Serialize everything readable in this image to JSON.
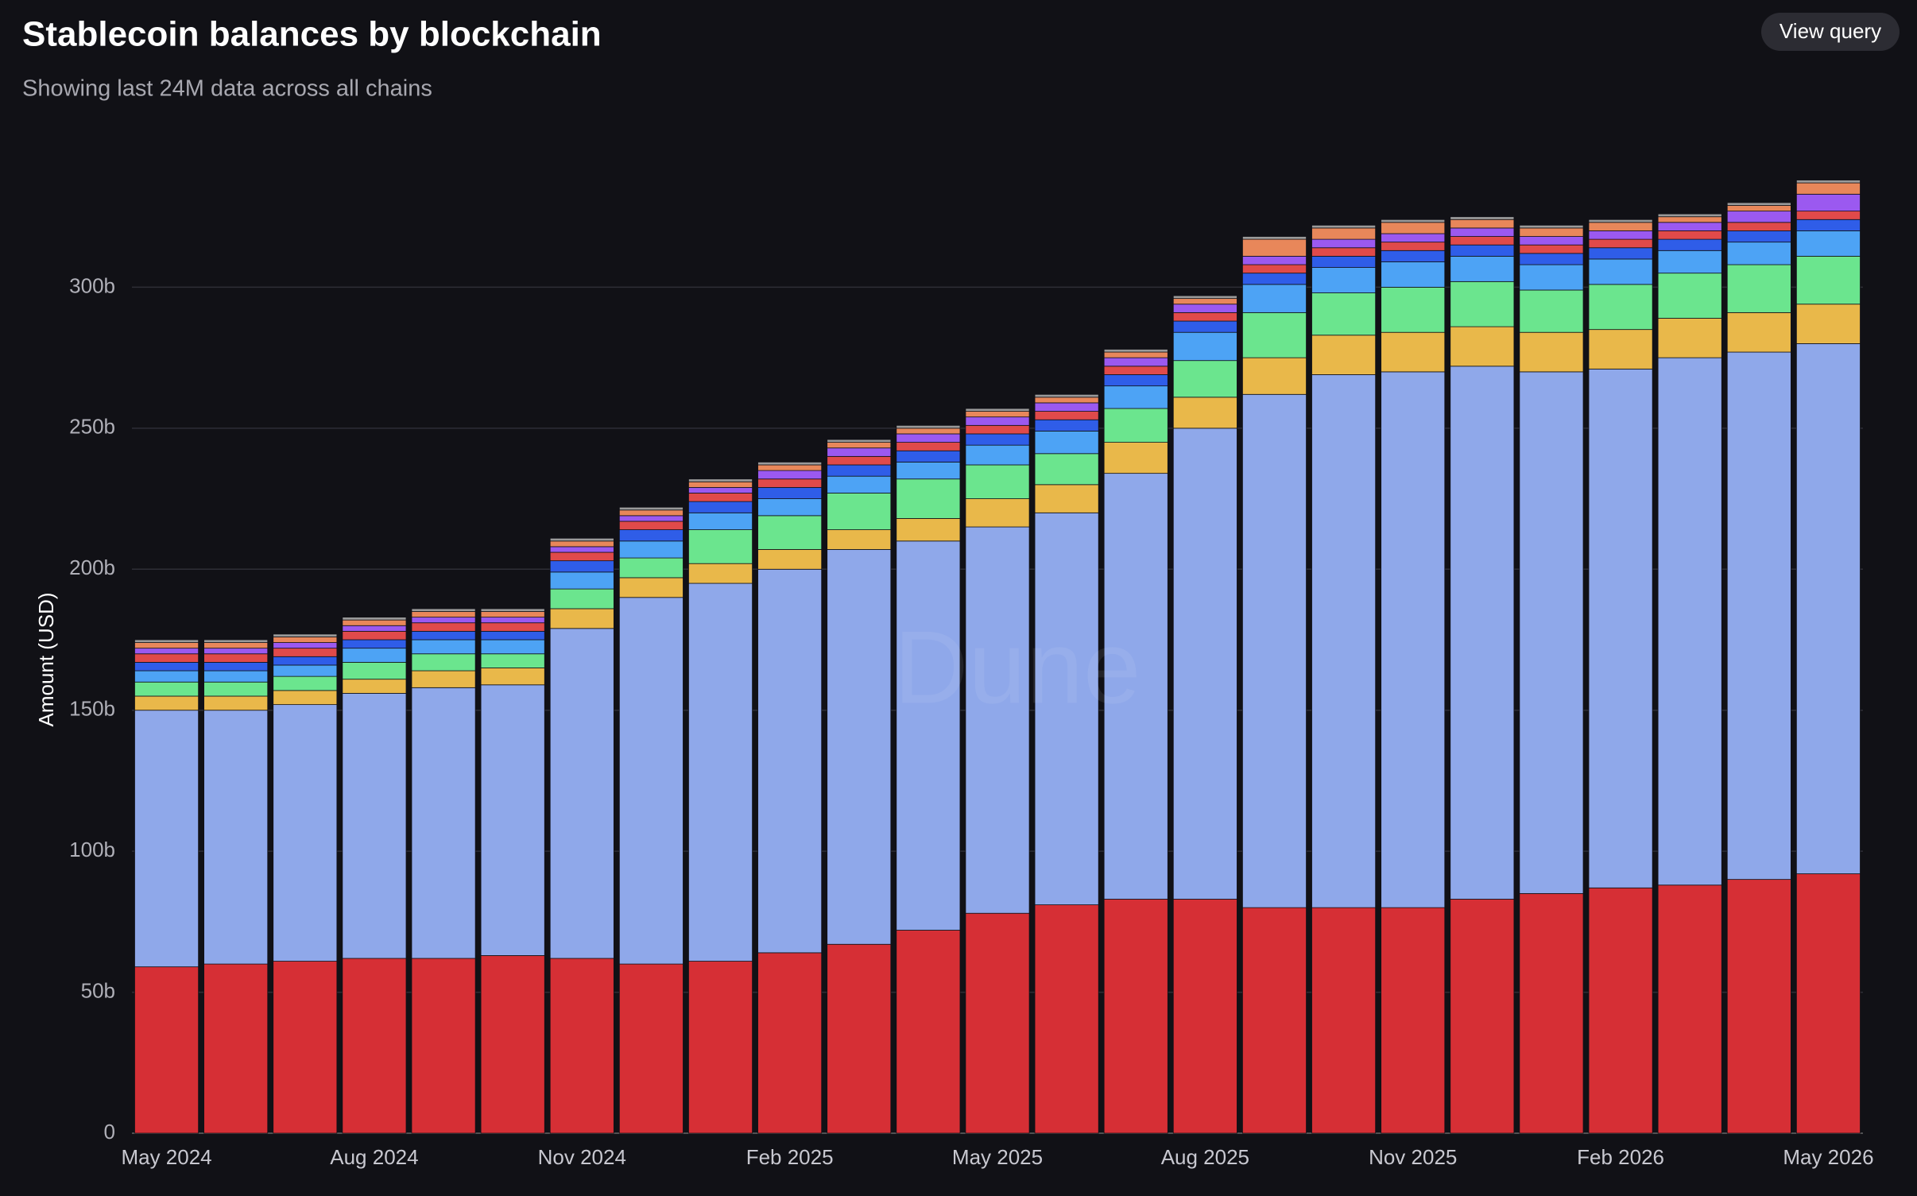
{
  "chart_data": {
    "type": "stacked-bar",
    "title": "Stablecoin balances by blockchain",
    "subtitle": "Showing last 24M data across all chains",
    "y_label": "Amount (USD)",
    "categories": [
      "May 2024",
      null,
      null,
      "Aug 2024",
      null,
      null,
      "Nov 2024",
      null,
      null,
      "Feb 2025",
      null,
      null,
      "May 2025",
      null,
      null,
      "Aug 2025",
      null,
      null,
      "Nov 2025",
      null,
      null,
      "Feb 2026",
      null,
      null,
      "May 2026"
    ],
    "ylim": [
      0,
      350
    ],
    "yticks": [
      0,
      {
        "value": 50,
        "label": "50b"
      },
      {
        "value": 100,
        "label": "100b"
      },
      {
        "value": 150,
        "label": "150b"
      },
      {
        "value": 200,
        "label": "200b"
      },
      {
        "value": 250,
        "label": "250b"
      },
      {
        "value": 300,
        "label": "300b"
      }
    ],
    "grid": true,
    "series": [
      {
        "color": "#d62f35",
        "values": [
          59,
          60,
          61,
          62,
          62,
          63,
          62,
          60,
          61,
          64,
          67,
          72,
          78,
          81,
          83,
          83,
          80,
          80,
          80,
          83,
          85,
          87,
          88,
          90,
          92
        ]
      },
      {
        "color": "#8fa8ea",
        "values": [
          91,
          90,
          91,
          94,
          96,
          96,
          117,
          130,
          134,
          136,
          140,
          138,
          137,
          139,
          151,
          167,
          182,
          189,
          190,
          189,
          185,
          184,
          187,
          187,
          188
        ]
      },
      {
        "color": "#e9b84a",
        "values": [
          5,
          5,
          5,
          5,
          6,
          6,
          7,
          7,
          7,
          7,
          7,
          8,
          10,
          10,
          11,
          11,
          13,
          14,
          14,
          14,
          14,
          14,
          14,
          14,
          14
        ]
      },
      {
        "color": "#6be58e",
        "values": [
          5,
          5,
          5,
          6,
          6,
          5,
          7,
          7,
          12,
          12,
          13,
          14,
          12,
          11,
          12,
          13,
          16,
          15,
          16,
          16,
          15,
          16,
          16,
          17,
          17
        ]
      },
      {
        "color": "#4da3f5",
        "values": [
          4,
          4,
          4,
          5,
          5,
          5,
          6,
          6,
          6,
          6,
          6,
          6,
          7,
          8,
          8,
          10,
          10,
          9,
          9,
          9,
          9,
          9,
          8,
          8,
          9
        ]
      },
      {
        "color": "#2f5de8",
        "values": [
          3,
          3,
          3,
          3,
          3,
          3,
          4,
          4,
          4,
          4,
          4,
          4,
          4,
          4,
          4,
          4,
          4,
          4,
          4,
          4,
          4,
          4,
          4,
          4,
          4
        ]
      },
      {
        "color": "#e04a4a",
        "values": [
          3,
          3,
          3,
          3,
          3,
          3,
          3,
          3,
          3,
          3,
          3,
          3,
          3,
          3,
          3,
          3,
          3,
          3,
          3,
          3,
          3,
          3,
          3,
          3,
          3
        ]
      },
      {
        "color": "#9b59f0",
        "values": [
          2,
          2,
          2,
          2,
          2,
          2,
          2,
          2,
          2,
          3,
          3,
          3,
          3,
          3,
          3,
          3,
          3,
          3,
          3,
          3,
          3,
          3,
          3,
          4,
          6
        ]
      },
      {
        "color": "#e8875a",
        "values": [
          2,
          2,
          2,
          2,
          2,
          2,
          2,
          2,
          2,
          2,
          2,
          2,
          2,
          2,
          2,
          2,
          6,
          4,
          4,
          3,
          3,
          3,
          2,
          2,
          4
        ]
      },
      {
        "color": "#9a9a9a",
        "values": [
          1,
          1,
          1,
          1,
          1,
          1,
          1,
          1,
          1,
          1,
          1,
          1,
          1,
          1,
          1,
          1,
          1,
          1,
          1,
          1,
          1,
          1,
          1,
          1,
          1
        ]
      }
    ]
  },
  "button": "View query",
  "watermark": "Dune"
}
